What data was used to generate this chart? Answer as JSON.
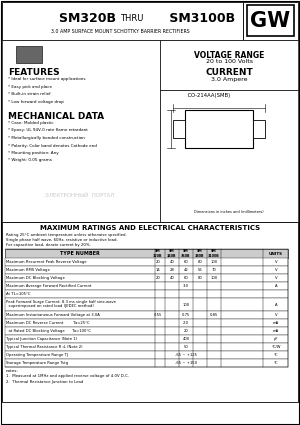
{
  "title_bold": "SM320B ",
  "title_thru": "THRU",
  "title_bold2": " SM3100B",
  "subtitle": "3.0 AMP SURFACE MOUNT SCHOTTKY BARRIER RECTIFIERS",
  "gw_logo": "GW",
  "voltage_range": "VOLTAGE RANGE",
  "voltage_vals": "20 to 100 Volts",
  "current_label": "CURRENT",
  "current_vals": "3.0 Ampere",
  "features_title": "FEATURES",
  "features": [
    "* Ideal for surface mount applications",
    "* Easy pick and place",
    "* Built-in strain relief",
    "* Low forward voltage drop"
  ],
  "mech_title": "MECHANICAL DATA",
  "mech": [
    "* Case: Molded plastic",
    "* Epoxy: UL 94V-0 rate flame retardant",
    "* Metallurgically bonded construction",
    "* Polarity: Color band denotes Cathode end",
    "* Mounting position: Any",
    "* Weight: 0.05 grams"
  ],
  "table_title": "MAXIMUM RATINGS AND ELECTRICAL CHARACTERISTICS",
  "table_note1": "Rating 25°C ambient temperature unless otherwise specified.",
  "table_note2": "Single phase half wave, 60Hz, resistive or inductive load.",
  "table_note3": "For capacitive load, derate current by 20%.",
  "pkg_label": "DO-214AA(SMB)",
  "dim_note": "Dimensions in inches and (millimeters)",
  "watermark": "ЭЛЕКТРОННЫЙ  ПОРТАЛ",
  "footer_notes": "notes:",
  "footer_note1": "1.  Measured at 1MHz and applied reverse voltage of 4.0V D.C.",
  "footer_note2": "2.  Thermal Resistance Junction to Lead",
  "bg_color": "#ffffff",
  "header_bg": "#f0f0f0",
  "col_header_bg": "#d0d0d0",
  "rows": [
    {
      "label": "Maximum Recurrent Peak Reverse Voltage",
      "vals": [
        "20",
        "40",
        "60",
        "80",
        "100"
      ],
      "unit": "V",
      "tall": false
    },
    {
      "label": "Maximum RMS Voltage",
      "vals": [
        "14",
        "28",
        "42",
        "56",
        "70"
      ],
      "unit": "V",
      "tall": false
    },
    {
      "label": "Maximum DC Blocking Voltage",
      "vals": [
        "20",
        "40",
        "60",
        "80",
        "100"
      ],
      "unit": "V",
      "tall": false
    },
    {
      "label": "Maximum Average Forward Rectified Current",
      "vals": [
        "",
        "",
        "3.0",
        "",
        ""
      ],
      "unit": "A",
      "tall": false
    },
    {
      "label": "At TL=105°C",
      "vals": [
        "",
        "",
        "",
        "",
        ""
      ],
      "unit": "",
      "tall": false
    },
    {
      "label": "Peak Forward Surge Current; 8.3 ms single half sine-wave\n  superimposed on rated load (JEDEC method)",
      "vals": [
        "",
        "",
        "100",
        "",
        ""
      ],
      "unit": "A",
      "tall": true
    },
    {
      "label": "Maximum Instantaneous Forward Voltage at 3.0A",
      "vals": [
        "0.55",
        "",
        "0.75",
        "",
        "0.85"
      ],
      "unit": "V",
      "tall": false
    },
    {
      "label": "Maximum DC Reverse Current        Ta=25°C",
      "vals": [
        "",
        "",
        "2.0",
        "",
        ""
      ],
      "unit": "mA",
      "tall": false
    },
    {
      "label": "  at Rated DC Blocking Voltage      Ta=100°C",
      "vals": [
        "",
        "",
        "20",
        "",
        ""
      ],
      "unit": "mA",
      "tall": false
    },
    {
      "label": "Typical Junction Capacitance (Note 1)",
      "vals": [
        "",
        "",
        "400",
        "",
        ""
      ],
      "unit": "pF",
      "tall": false
    },
    {
      "label": "Typical Thermal Resistance R ıL (Note 2)",
      "vals": [
        "",
        "",
        "50",
        "",
        ""
      ],
      "unit": "°C/W",
      "tall": false
    },
    {
      "label": "Operating Temperature Range TJ",
      "vals": [
        "",
        "",
        "-65 ~ +125",
        "",
        ""
      ],
      "unit": "°C",
      "tall": false
    },
    {
      "label": "Storage Temperature Range Tstg",
      "vals": [
        "",
        "",
        "-65 ~ +150",
        "",
        ""
      ],
      "unit": "°C",
      "tall": false
    }
  ]
}
